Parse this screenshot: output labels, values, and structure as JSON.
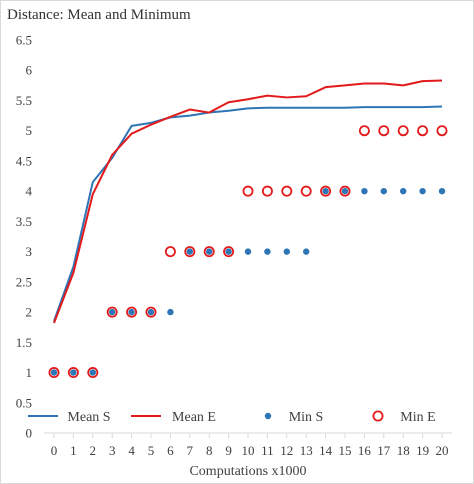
{
  "chart_data": {
    "type": "line",
    "title": "Distance: Mean and Minimum",
    "xlabel": "Computations x1000",
    "ylabel": "",
    "x": [
      0,
      1,
      2,
      3,
      4,
      5,
      6,
      7,
      8,
      9,
      10,
      11,
      12,
      13,
      14,
      15,
      16,
      17,
      18,
      19,
      20
    ],
    "xlim": [
      0,
      20
    ],
    "ylim": [
      0,
      6.5
    ],
    "yticks": [
      0,
      0.5,
      1,
      1.5,
      2,
      2.5,
      3,
      3.5,
      4,
      4.5,
      5,
      5.5,
      6,
      6.5
    ],
    "ytick_labels": [
      "0",
      "0.5",
      "1",
      "1.5",
      "2",
      "2.5",
      "3",
      "3.5",
      "4",
      "4.5",
      "5",
      "5.5",
      "6",
      "6.5"
    ],
    "grid": false,
    "legend_position": "bottom",
    "series": [
      {
        "name": "Mean S",
        "kind": "line",
        "color": "#2e75b6",
        "values": [
          1.85,
          2.75,
          4.15,
          4.55,
          5.08,
          5.13,
          5.22,
          5.25,
          5.3,
          5.33,
          5.37,
          5.38,
          5.38,
          5.38,
          5.38,
          5.38,
          5.39,
          5.39,
          5.39,
          5.39,
          5.4
        ]
      },
      {
        "name": "Mean E",
        "kind": "line",
        "color": "#e31a1c",
        "values": [
          1.82,
          2.65,
          3.95,
          4.6,
          4.95,
          5.1,
          5.23,
          5.35,
          5.3,
          5.47,
          5.52,
          5.58,
          5.55,
          5.57,
          5.72,
          5.75,
          5.78,
          5.78,
          5.75,
          5.82,
          5.83
        ]
      },
      {
        "name": "Min S",
        "kind": "marker",
        "color": "#2e75b6",
        "values": [
          1,
          1,
          1,
          2,
          2,
          2,
          2,
          3,
          3,
          3,
          3,
          3,
          3,
          3,
          4,
          4,
          4,
          4,
          4,
          4,
          4
        ]
      },
      {
        "name": "Min E",
        "kind": "marker",
        "color": "#e31a1c",
        "values": [
          1,
          1,
          1,
          2,
          2,
          2,
          3,
          3,
          3,
          3,
          4,
          4,
          4,
          4,
          4,
          4,
          5,
          5,
          5,
          5,
          5
        ]
      }
    ]
  }
}
